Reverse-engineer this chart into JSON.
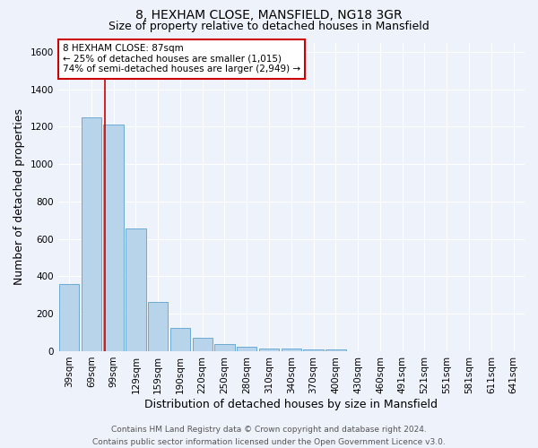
{
  "title": "8, HEXHAM CLOSE, MANSFIELD, NG18 3GR",
  "subtitle": "Size of property relative to detached houses in Mansfield",
  "xlabel": "Distribution of detached houses by size in Mansfield",
  "ylabel": "Number of detached properties",
  "categories": [
    "39sqm",
    "69sqm",
    "99sqm",
    "129sqm",
    "159sqm",
    "190sqm",
    "220sqm",
    "250sqm",
    "280sqm",
    "310sqm",
    "340sqm",
    "370sqm",
    "400sqm",
    "430sqm",
    "460sqm",
    "491sqm",
    "521sqm",
    "551sqm",
    "581sqm",
    "611sqm",
    "641sqm"
  ],
  "values": [
    360,
    1250,
    1210,
    655,
    265,
    125,
    70,
    38,
    25,
    15,
    12,
    8,
    10,
    0,
    0,
    0,
    0,
    0,
    0,
    0,
    0
  ],
  "bar_color": "#b8d4ea",
  "bar_edge_color": "#6aaad4",
  "annotation_text_line1": "8 HEXHAM CLOSE: 87sqm",
  "annotation_text_line2": "← 25% of detached houses are smaller (1,015)",
  "annotation_text_line3": "74% of semi-detached houses are larger (2,949) →",
  "red_line_x": 1.6,
  "ylim": [
    0,
    1650
  ],
  "yticks": [
    0,
    200,
    400,
    600,
    800,
    1000,
    1200,
    1400,
    1600
  ],
  "footer_line1": "Contains HM Land Registry data © Crown copyright and database right 2024.",
  "footer_line2": "Contains public sector information licensed under the Open Government Licence v3.0.",
  "bg_color": "#eef2fb",
  "plot_bg_color": "#eef2fb",
  "grid_color": "#ffffff",
  "annotation_box_color": "#ffffff",
  "annotation_box_edge_color": "#cc0000",
  "red_line_color": "#cc0000",
  "title_fontsize": 10,
  "subtitle_fontsize": 9,
  "axis_label_fontsize": 9,
  "tick_fontsize": 7.5,
  "annotation_fontsize": 7.5,
  "footer_fontsize": 6.5
}
